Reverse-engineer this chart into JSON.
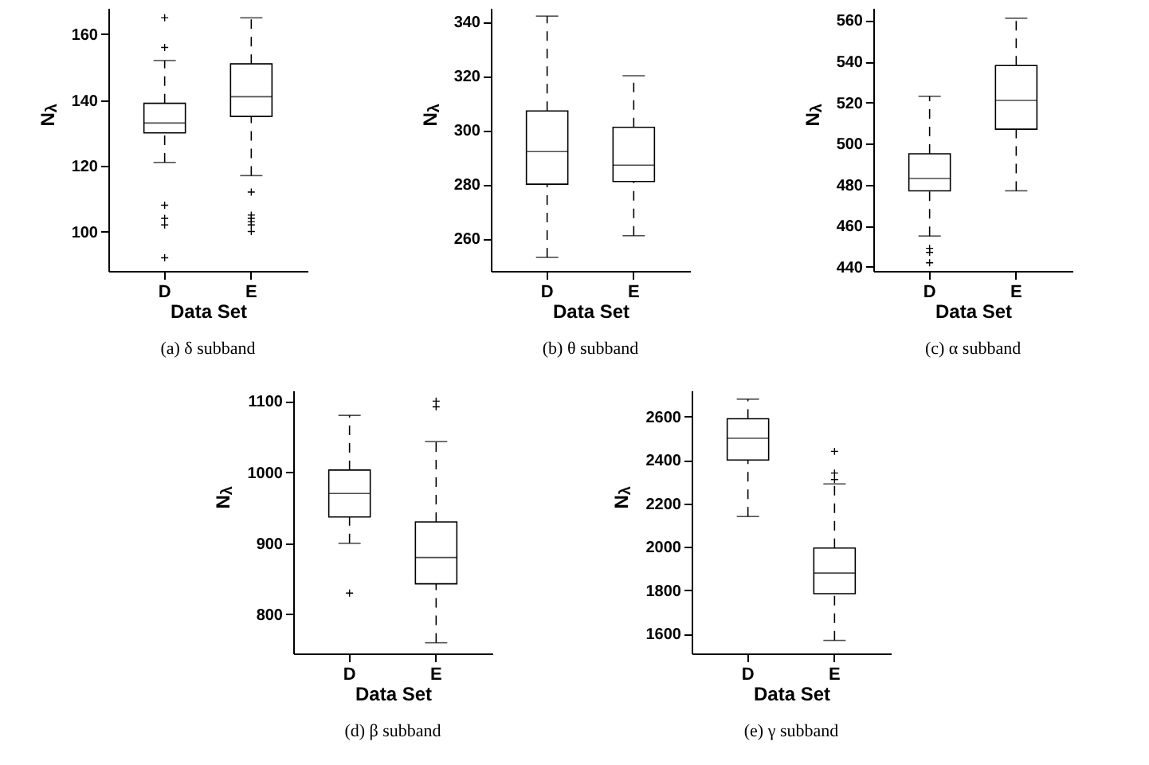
{
  "chart_data": [
    {
      "type": "box",
      "title": "(a) δ subband",
      "xlabel": "Data Set",
      "ylabel": "N$_{λ}$",
      "categories": [
        "D",
        "E"
      ],
      "ylim": [
        88,
        168
      ],
      "yticks": [
        100,
        120,
        140,
        160
      ],
      "boxes": [
        {
          "low": 121,
          "q1": 130,
          "median": 133,
          "q3": 139,
          "high": 152,
          "outliers": [
            165,
            156,
            108,
            104,
            102,
            92
          ]
        },
        {
          "low": 117,
          "q1": 135,
          "median": 141,
          "q3": 151,
          "high": 165,
          "outliers": [
            112,
            105,
            104,
            103,
            102,
            100
          ]
        }
      ]
    },
    {
      "type": "box",
      "title": "(b) θ subband",
      "xlabel": "Data Set",
      "ylabel": "N$_{λ}$",
      "categories": [
        "D",
        "E"
      ],
      "ylim": [
        248,
        345
      ],
      "yticks": [
        260,
        280,
        300,
        320,
        340
      ],
      "boxes": [
        {
          "low": 253,
          "q1": 280,
          "median": 292,
          "q3": 307,
          "high": 342
        },
        {
          "low": 261,
          "q1": 281,
          "median": 287,
          "q3": 301,
          "high": 320
        }
      ]
    },
    {
      "type": "box",
      "title": "(c) α subband",
      "xlabel": "Data Set",
      "ylabel": "N$_{λ}$",
      "categories": [
        "D",
        "E"
      ],
      "ylim": [
        438,
        566
      ],
      "yticks": [
        440,
        460,
        480,
        500,
        520,
        540,
        560
      ],
      "boxes": [
        {
          "low": 455,
          "q1": 477,
          "median": 483,
          "q3": 495,
          "high": 523,
          "outliers": [
            449,
            447,
            442
          ]
        },
        {
          "low": 477,
          "q1": 507,
          "median": 521,
          "q3": 538,
          "high": 561
        }
      ]
    },
    {
      "type": "box",
      "title": "(d) β subband",
      "xlabel": "Data Set",
      "ylabel": "N$_{λ}$",
      "categories": [
        "D",
        "E"
      ],
      "ylim": [
        745,
        1115
      ],
      "yticks": [
        800,
        900,
        1000,
        1100
      ],
      "boxes": [
        {
          "low": 900,
          "q1": 937,
          "median": 970,
          "q3": 1003,
          "high": 1080,
          "outliers": [
            830
          ]
        },
        {
          "low": 760,
          "q1": 843,
          "median": 880,
          "q3": 930,
          "high": 1043,
          "outliers": [
            1100,
            1092
          ]
        }
      ]
    },
    {
      "type": "box",
      "title": "(e) γ subband",
      "xlabel": "Data Set",
      "ylabel": "N$_{λ}$",
      "categories": [
        "D",
        "E"
      ],
      "ylim": [
        1510,
        2720
      ],
      "yticks": [
        1600,
        1800,
        2000,
        2200,
        2400,
        2600
      ],
      "boxes": [
        {
          "low": 2140,
          "q1": 2400,
          "median": 2500,
          "q3": 2590,
          "high": 2680
        },
        {
          "low": 1570,
          "q1": 1785,
          "median": 1880,
          "q3": 1995,
          "high": 2290,
          "outliers": [
            2440,
            2340,
            2310
          ]
        }
      ]
    }
  ]
}
